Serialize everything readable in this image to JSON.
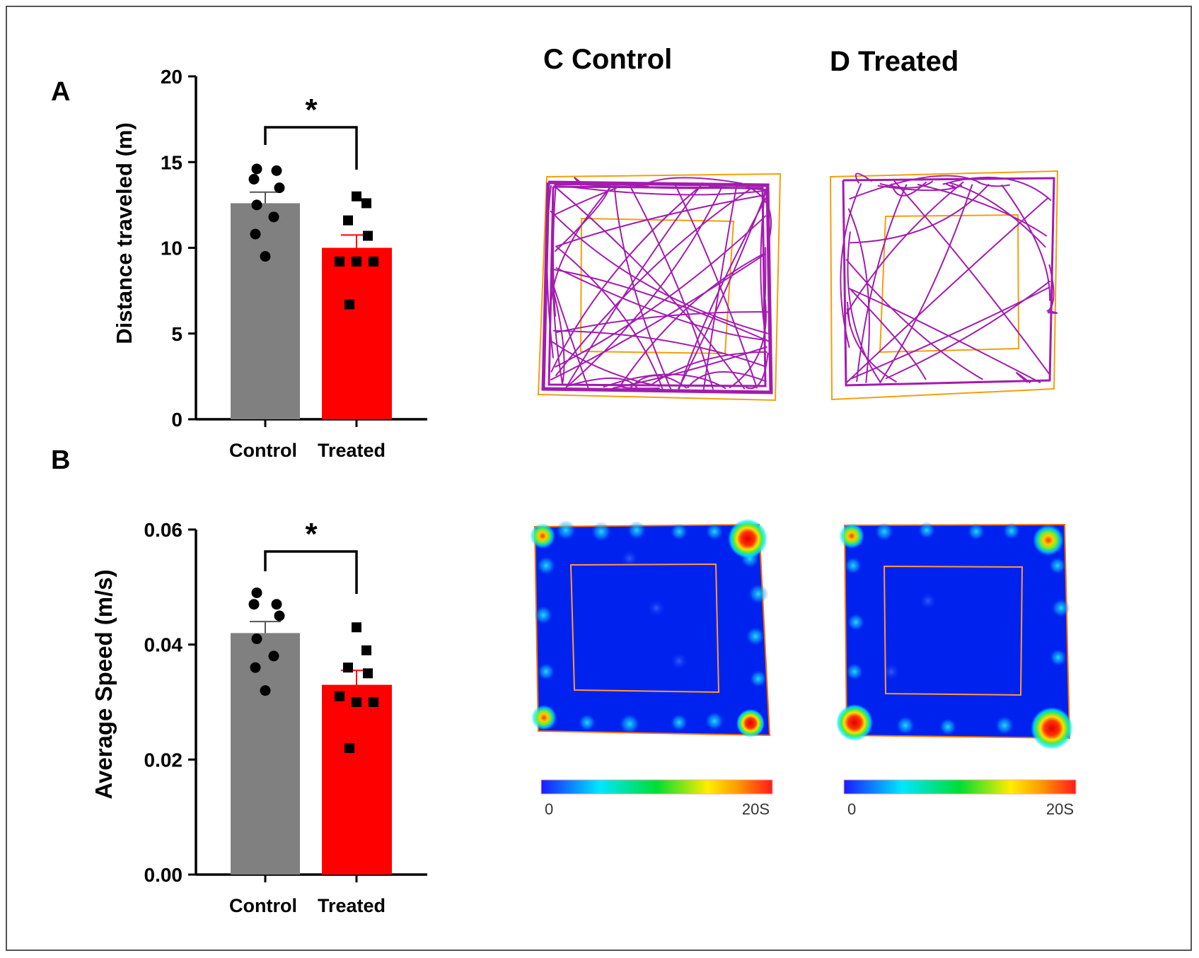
{
  "panels": {
    "a": {
      "letter": "A"
    },
    "b": {
      "letter": "B"
    },
    "c": {
      "letter_title": "C  Control"
    },
    "d": {
      "letter_title": "D Treated"
    }
  },
  "colorbar": {
    "min_label": "0",
    "max_label": "20S"
  },
  "colors": {
    "control_bar": "#808080",
    "treated_bar": "#ff0000",
    "track": "#a21caf",
    "arena": "#f59e0b"
  },
  "chart_data": [
    {
      "type": "bar",
      "panel": "A",
      "categories": [
        "Control",
        "Treated"
      ],
      "values": [
        12.6,
        10.0
      ],
      "errors": [
        0.65,
        0.75
      ],
      "points": [
        [
          14.6,
          14.5,
          14.0,
          13.5,
          12.5,
          11.8,
          10.8,
          9.5
        ],
        [
          13.0,
          12.6,
          11.6,
          10.7,
          9.2,
          9.2,
          9.2,
          6.7
        ]
      ],
      "point_markers": [
        "circle",
        "square"
      ],
      "ylabel": "Distance traveled (m)",
      "ylim": [
        0,
        20
      ],
      "yticks": [
        0,
        5,
        10,
        15,
        20
      ],
      "ytick_labels": [
        "0",
        "5",
        "10",
        "15",
        "20"
      ],
      "significance": "*"
    },
    {
      "type": "bar",
      "panel": "B",
      "categories": [
        "Control",
        "Treated"
      ],
      "values": [
        0.042,
        0.033
      ],
      "errors": [
        0.002,
        0.0025
      ],
      "points": [
        [
          0.049,
          0.047,
          0.047,
          0.045,
          0.041,
          0.038,
          0.036,
          0.032
        ],
        [
          0.043,
          0.039,
          0.036,
          0.035,
          0.031,
          0.03,
          0.03,
          0.022
        ]
      ],
      "point_markers": [
        "circle",
        "square"
      ],
      "ylabel": "Average Speed (m/s)",
      "ylim": [
        0,
        0.06
      ],
      "yticks": [
        0,
        0.02,
        0.04,
        0.06
      ],
      "ytick_labels": [
        "0.00",
        "0.02",
        "0.04",
        "0.06"
      ],
      "significance": "*"
    }
  ]
}
